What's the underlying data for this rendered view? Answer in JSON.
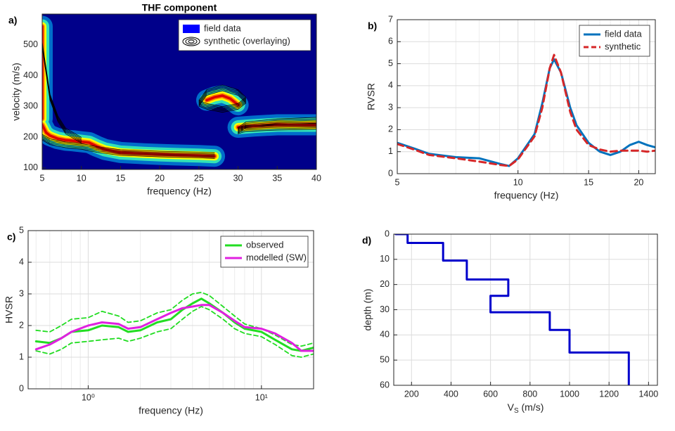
{
  "chart_data": [
    {
      "type": "heatmap",
      "label": "a)",
      "title": "THF component",
      "xlabel": "frequency (Hz)",
      "ylabel": "velocity (m/s)",
      "xlim": [
        5,
        40
      ],
      "xticks": [
        5,
        10,
        15,
        20,
        25,
        30,
        35,
        40
      ],
      "ylim": [
        95,
        600
      ],
      "yticks": [
        100,
        200,
        300,
        400,
        500
      ],
      "grid": false,
      "legend": "upper right",
      "series": [
        {
          "name": "field data",
          "color": "#0000ff",
          "x": [
            5,
            5,
            null,
            5,
            5.5,
            6,
            7,
            8,
            9,
            10,
            11,
            12,
            13,
            15,
            18,
            20,
            22,
            25,
            27,
            null,
            26,
            27,
            28,
            29,
            30,
            null,
            30,
            32,
            35,
            38,
            40
          ],
          "values": [
            560,
            260,
            null,
            240,
            215,
            205,
            195,
            190,
            188,
            185,
            182,
            170,
            160,
            150,
            146,
            144,
            142,
            140,
            138,
            null,
            320,
            330,
            335,
            325,
            305,
            null,
            232,
            236,
            240,
            240,
            240
          ]
        },
        {
          "name": "synthetic (overlaying)",
          "color": "#000000",
          "x": [
            5,
            6,
            7,
            8,
            10,
            null,
            5,
            6,
            8,
            10,
            12,
            15,
            20,
            25,
            27,
            null,
            25,
            26,
            28,
            30,
            31,
            30,
            28,
            26,
            25,
            null,
            30,
            31,
            35,
            40,
            null,
            30,
            31,
            35,
            40
          ],
          "values": [
            500,
            330,
            260,
            220,
            190,
            null,
            200,
            185,
            175,
            170,
            160,
            150,
            145,
            142,
            140,
            null,
            310,
            345,
            360,
            345,
            320,
            300,
            290,
            300,
            310,
            null,
            222,
            240,
            250,
            255,
            null,
            220,
            228,
            232,
            235
          ]
        }
      ]
    },
    {
      "type": "line",
      "label": "b)",
      "xlabel": "frequency (Hz)",
      "ylabel": "RVSR",
      "xscale": "log",
      "xlim": [
        5,
        22
      ],
      "xticks": [
        5,
        10,
        15,
        20
      ],
      "xminorgrid": [
        6,
        7,
        8,
        9,
        11,
        12,
        13,
        14,
        16,
        17,
        18,
        19,
        21
      ],
      "ylim": [
        0,
        7
      ],
      "yticks": [
        0,
        1,
        2,
        3,
        4,
        5,
        6,
        7
      ],
      "grid": true,
      "legend": "upper right",
      "x": [
        5,
        5.5,
        6,
        7,
        8,
        9,
        9.5,
        10,
        11,
        11.5,
        12,
        12.3,
        12.8,
        13.5,
        14,
        15,
        16,
        17,
        18,
        19,
        20,
        21,
        22
      ],
      "series": [
        {
          "name": "field data",
          "color": "#0072bd",
          "dash": false,
          "values": [
            1.4,
            1.15,
            0.9,
            0.75,
            0.7,
            0.45,
            0.35,
            0.7,
            1.8,
            3.2,
            4.8,
            5.2,
            4.6,
            3.0,
            2.2,
            1.4,
            1.0,
            0.85,
            1.0,
            1.3,
            1.45,
            1.3,
            1.2
          ]
        },
        {
          "name": "synthetic",
          "color": "#d62728",
          "dash": true,
          "values": [
            1.35,
            1.1,
            0.85,
            0.7,
            0.55,
            0.4,
            0.35,
            0.65,
            1.7,
            3.0,
            4.8,
            5.4,
            4.6,
            2.8,
            2.0,
            1.3,
            1.1,
            1.0,
            1.05,
            1.05,
            1.05,
            1.0,
            1.05
          ]
        }
      ]
    },
    {
      "type": "line",
      "label": "c)",
      "xlabel": "frequency (Hz)",
      "ylabel": "HVSR",
      "xscale": "log",
      "xlim": [
        0.45,
        20
      ],
      "xticks": [
        {
          "value": 1,
          "label": "10⁰"
        },
        {
          "value": 10,
          "label": "10¹"
        }
      ],
      "xminorgrid": [
        0.5,
        0.6,
        0.7,
        0.8,
        0.9,
        2,
        3,
        4,
        5,
        6,
        7,
        8,
        9,
        20
      ],
      "ylim": [
        0,
        5
      ],
      "yticks": [
        0,
        1,
        2,
        3,
        4,
        5
      ],
      "grid": true,
      "legend": "upper right",
      "x": [
        0.5,
        0.6,
        0.7,
        0.8,
        1.0,
        1.2,
        1.5,
        1.7,
        2,
        2.5,
        3,
        3.5,
        4,
        4.5,
        5,
        6,
        7,
        8,
        10,
        12,
        15,
        17,
        20
      ],
      "series": [
        {
          "name": "observed",
          "color": "#22dd22",
          "dash": false,
          "values": [
            1.5,
            1.45,
            1.6,
            1.8,
            1.85,
            2.0,
            1.95,
            1.8,
            1.85,
            2.1,
            2.2,
            2.5,
            2.7,
            2.85,
            2.7,
            2.4,
            2.1,
            1.9,
            1.8,
            1.55,
            1.25,
            1.2,
            1.3
          ],
          "upper": [
            1.85,
            1.8,
            2.0,
            2.2,
            2.25,
            2.45,
            2.3,
            2.1,
            2.15,
            2.4,
            2.5,
            2.8,
            3.0,
            3.05,
            2.95,
            2.6,
            2.3,
            2.05,
            1.9,
            1.7,
            1.4,
            1.35,
            1.45
          ],
          "lower": [
            1.2,
            1.1,
            1.25,
            1.45,
            1.5,
            1.55,
            1.6,
            1.5,
            1.6,
            1.8,
            1.9,
            2.2,
            2.45,
            2.6,
            2.5,
            2.2,
            1.9,
            1.75,
            1.65,
            1.4,
            1.05,
            1.0,
            1.1
          ]
        },
        {
          "name": "modelled (SW)",
          "color": "#e020e0",
          "dash": false,
          "values": [
            1.25,
            1.4,
            1.6,
            1.8,
            2.0,
            2.1,
            2.05,
            1.9,
            1.95,
            2.2,
            2.4,
            2.55,
            2.6,
            2.65,
            2.65,
            2.4,
            2.15,
            1.95,
            1.9,
            1.75,
            1.45,
            1.2,
            1.2
          ]
        }
      ]
    },
    {
      "type": "step",
      "label": "d)",
      "xlabel": {
        "main": "V",
        "sub": "S",
        "unit": " (m/s)"
      },
      "ylabel": "depth (m)",
      "xlim": [
        110,
        1445
      ],
      "xticks": [
        200,
        400,
        600,
        800,
        1000,
        1200,
        1400
      ],
      "ylim": [
        0,
        60
      ],
      "yticks": [
        0,
        10,
        20,
        30,
        40,
        50,
        60
      ],
      "yreverse": true,
      "grid": true,
      "series": [
        {
          "color": "#0000cc",
          "x": [
            120,
            180,
            180,
            360,
            360,
            480,
            480,
            690,
            690,
            600,
            600,
            900,
            900,
            1000,
            1000,
            1300,
            1300
          ],
          "values": [
            0,
            0,
            3.5,
            3.5,
            10.5,
            10.5,
            18,
            18,
            24.5,
            24.5,
            31,
            31,
            38,
            38,
            47,
            47,
            60
          ]
        }
      ]
    }
  ]
}
